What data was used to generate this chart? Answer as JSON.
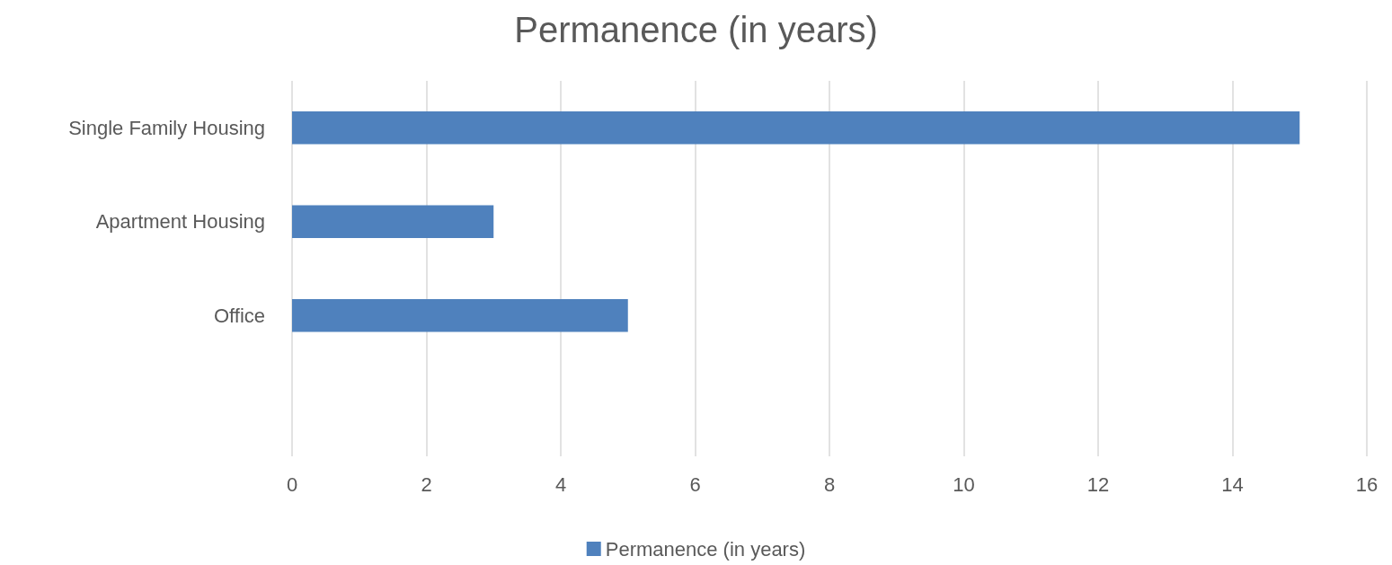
{
  "chart_data": {
    "type": "bar",
    "title": "Permanence (in years)",
    "orientation": "horizontal",
    "categories": [
      "Single Family Housing",
      "Apartment Housing",
      "Office",
      null
    ],
    "series": [
      {
        "name": "Permanence (in years)",
        "color": "#4f81bd",
        "values": [
          15,
          3,
          5,
          null
        ]
      }
    ],
    "xlim": [
      0,
      16
    ],
    "xticks": [
      0,
      2,
      4,
      6,
      8,
      10,
      12,
      14,
      16
    ],
    "grid": "x",
    "legend": "bottom"
  }
}
